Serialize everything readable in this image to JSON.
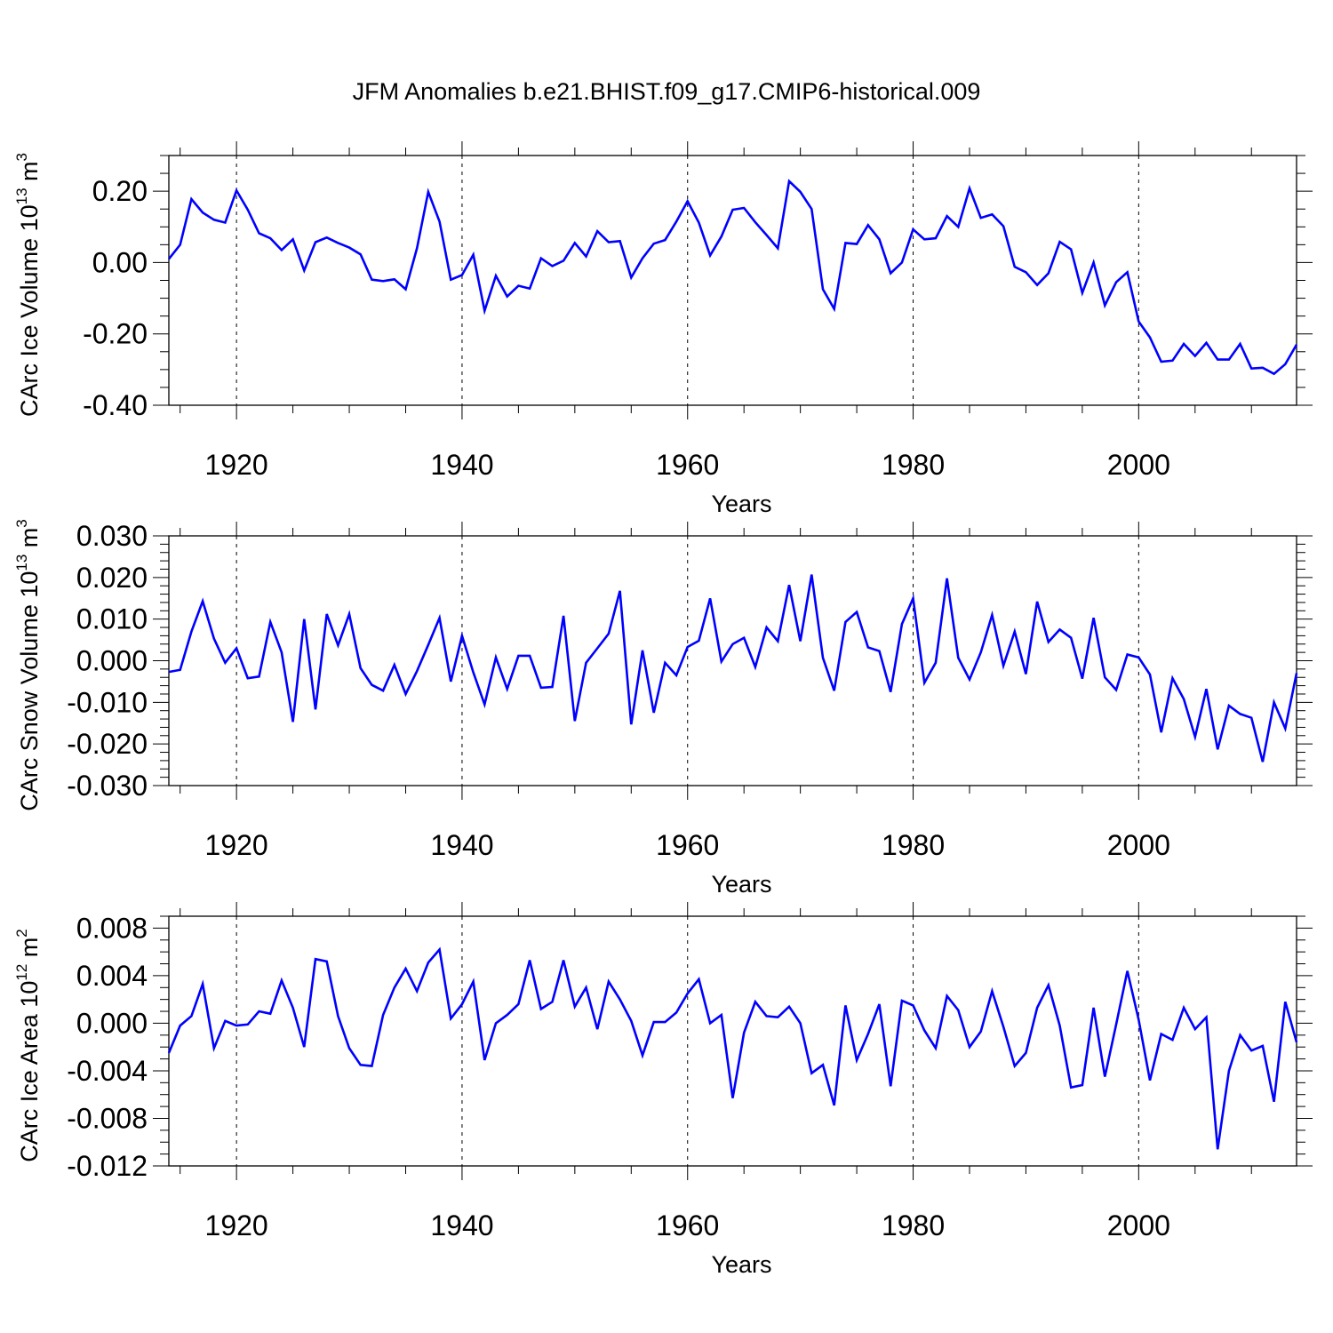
{
  "figure": {
    "title": "JFM Anomalies b.e21.BHIST.f09_g17.CMIP6-historical.009",
    "line_color": "#0000ff"
  },
  "chart_data": [
    {
      "type": "line",
      "name": "ice-volume",
      "title": "",
      "xlabel": "Years",
      "ylabel_main": "CArc Ice Volume 10",
      "ylabel_exp": "13",
      "ylabel_unit": " m",
      "ylabel_unit_exp": "3",
      "xlim": [
        1914,
        2014
      ],
      "ylim": [
        -0.4,
        0.3
      ],
      "yticks": [
        -0.4,
        -0.2,
        0.0,
        0.2
      ],
      "ytick_labels": [
        "-0.40",
        "-0.20",
        "0.00",
        "0.20"
      ],
      "yminor_step": 0.05,
      "xticks": [
        1920,
        1940,
        1960,
        1980,
        2000
      ],
      "xtick_labels": [
        "1920",
        "1940",
        "1960",
        "1980",
        "2000"
      ],
      "grid": "vertical dashed at major x ticks",
      "x_start": 1914,
      "values": [
        0.01,
        0.05,
        0.178,
        0.14,
        0.12,
        0.112,
        0.202,
        0.148,
        0.082,
        0.068,
        0.035,
        0.065,
        -0.022,
        0.057,
        0.07,
        0.055,
        0.042,
        0.023,
        -0.048,
        -0.052,
        -0.047,
        -0.075,
        0.04,
        0.198,
        0.115,
        -0.048,
        -0.035,
        0.022,
        -0.135,
        -0.037,
        -0.095,
        -0.065,
        -0.073,
        0.012,
        -0.01,
        0.005,
        0.055,
        0.017,
        0.088,
        0.057,
        0.06,
        -0.042,
        0.012,
        0.053,
        0.063,
        0.115,
        0.172,
        0.112,
        0.02,
        0.073,
        0.148,
        0.153,
        0.113,
        0.077,
        0.04,
        0.228,
        0.198,
        0.15,
        -0.075,
        -0.13,
        0.055,
        0.052,
        0.105,
        0.065,
        -0.03,
        0.0,
        0.093,
        0.065,
        0.068,
        0.13,
        0.1,
        0.208,
        0.125,
        0.135,
        0.102,
        -0.012,
        -0.027,
        -0.063,
        -0.03,
        0.058,
        0.037,
        -0.085,
        0.0,
        -0.12,
        -0.055,
        -0.027,
        -0.165,
        -0.21,
        -0.278,
        -0.275,
        -0.228,
        -0.262,
        -0.225,
        -0.272,
        -0.272,
        -0.228,
        -0.297,
        -0.295,
        -0.312,
        -0.285,
        -0.23
      ]
    },
    {
      "type": "line",
      "name": "snow-volume",
      "title": "",
      "xlabel": "Years",
      "ylabel_main": "CArc Snow Volume 10",
      "ylabel_exp": "13",
      "ylabel_unit": " m",
      "ylabel_unit_exp": "3",
      "xlim": [
        1914,
        2014
      ],
      "ylim": [
        -0.03,
        0.03
      ],
      "yticks": [
        -0.03,
        -0.02,
        -0.01,
        0.0,
        0.01,
        0.02,
        0.03
      ],
      "ytick_labels": [
        "-0.030",
        "-0.020",
        "-0.010",
        "0.000",
        "0.010",
        "0.020",
        "0.030"
      ],
      "yminor_step": 0.002,
      "xticks": [
        1920,
        1940,
        1960,
        1980,
        2000
      ],
      "xtick_labels": [
        "1920",
        "1940",
        "1960",
        "1980",
        "2000"
      ],
      "grid": "vertical dashed at major x ticks",
      "x_start": 1914,
      "values": [
        -0.0027,
        -0.0022,
        0.007,
        0.0143,
        0.0053,
        -0.0005,
        0.003,
        -0.0042,
        -0.0038,
        0.0093,
        0.002,
        -0.0147,
        0.01,
        -0.0117,
        0.0112,
        0.0037,
        0.0112,
        -0.0018,
        -0.0058,
        -0.0072,
        -0.001,
        -0.008,
        -0.0025,
        0.0038,
        0.0103,
        -0.005,
        0.006,
        -0.0028,
        -0.0105,
        0.0008,
        -0.0068,
        0.0012,
        0.0012,
        -0.0065,
        -0.0063,
        0.0108,
        -0.0145,
        -0.0005,
        0.003,
        0.0065,
        0.0168,
        -0.0153,
        0.0025,
        -0.0125,
        -0.0005,
        -0.0035,
        0.0033,
        0.0048,
        0.015,
        -0.0002,
        0.004,
        0.0055,
        -0.0015,
        0.008,
        0.0047,
        0.0182,
        0.0047,
        0.0207,
        0.0007,
        -0.0072,
        0.0093,
        0.0117,
        0.0032,
        0.0023,
        -0.0075,
        0.0088,
        0.015,
        -0.0053,
        -0.0005,
        0.0198,
        0.0007,
        -0.0045,
        0.002,
        0.011,
        -0.0012,
        0.007,
        -0.0032,
        0.0142,
        0.0045,
        0.0075,
        0.0055,
        -0.0043,
        0.0103,
        -0.004,
        -0.007,
        0.0015,
        0.0008,
        -0.0033,
        -0.0172,
        -0.0042,
        -0.0092,
        -0.0183,
        -0.0068,
        -0.0213,
        -0.0108,
        -0.0128,
        -0.0137,
        -0.0243,
        -0.01,
        -0.0163,
        -0.003
      ]
    },
    {
      "type": "line",
      "name": "ice-area",
      "title": "",
      "xlabel": "Years",
      "ylabel_main": "CArc Ice Area 10",
      "ylabel_exp": "12",
      "ylabel_unit": " m",
      "ylabel_unit_exp": "2",
      "xlim": [
        1914,
        2014
      ],
      "ylim": [
        -0.012,
        0.009
      ],
      "yticks": [
        -0.012,
        -0.008,
        -0.004,
        0.0,
        0.004,
        0.008
      ],
      "ytick_labels": [
        "-0.012",
        "-0.008",
        "-0.004",
        "0.000",
        "0.004",
        "0.008"
      ],
      "yminor_step": 0.001,
      "xticks": [
        1920,
        1940,
        1960,
        1980,
        2000
      ],
      "xtick_labels": [
        "1920",
        "1940",
        "1960",
        "1980",
        "2000"
      ],
      "grid": "vertical dashed at major x ticks",
      "x_start": 1914,
      "values": [
        -0.0025,
        -0.0002,
        0.0006,
        0.0033,
        -0.0021,
        0.0002,
        -0.0002,
        -0.0001,
        0.001,
        0.0008,
        0.0036,
        0.0013,
        -0.002,
        0.0054,
        0.0052,
        0.0006,
        -0.0021,
        -0.0035,
        -0.0036,
        0.0007,
        0.003,
        0.0046,
        0.0027,
        0.0051,
        0.0062,
        0.0004,
        0.0016,
        0.0035,
        -0.0031,
        0.0,
        0.0007,
        0.0016,
        0.0053,
        0.0012,
        0.0018,
        0.0053,
        0.0014,
        0.003,
        -0.0005,
        0.0035,
        0.002,
        0.0002,
        -0.0027,
        0.0001,
        0.0001,
        0.0009,
        0.0025,
        0.0037,
        0.0,
        0.0007,
        -0.0063,
        -0.0008,
        0.0018,
        0.0006,
        0.0005,
        0.0014,
        0.0,
        -0.0042,
        -0.0035,
        -0.0069,
        0.0015,
        -0.0031,
        -0.0009,
        0.0016,
        -0.0053,
        0.0019,
        0.0015,
        -0.0006,
        -0.0021,
        0.0023,
        0.0011,
        -0.002,
        -0.0007,
        0.0027,
        -0.0003,
        -0.0036,
        -0.0025,
        0.0013,
        0.0032,
        -0.0002,
        -0.0054,
        -0.0052,
        0.0013,
        -0.0045,
        -0.0001,
        0.0044,
        0.0003,
        -0.0048,
        -0.0009,
        -0.0014,
        0.0013,
        -0.0005,
        0.0005,
        -0.0106,
        -0.004,
        -0.001,
        -0.0023,
        -0.0019,
        -0.0066,
        0.0018,
        -0.0016
      ]
    }
  ]
}
